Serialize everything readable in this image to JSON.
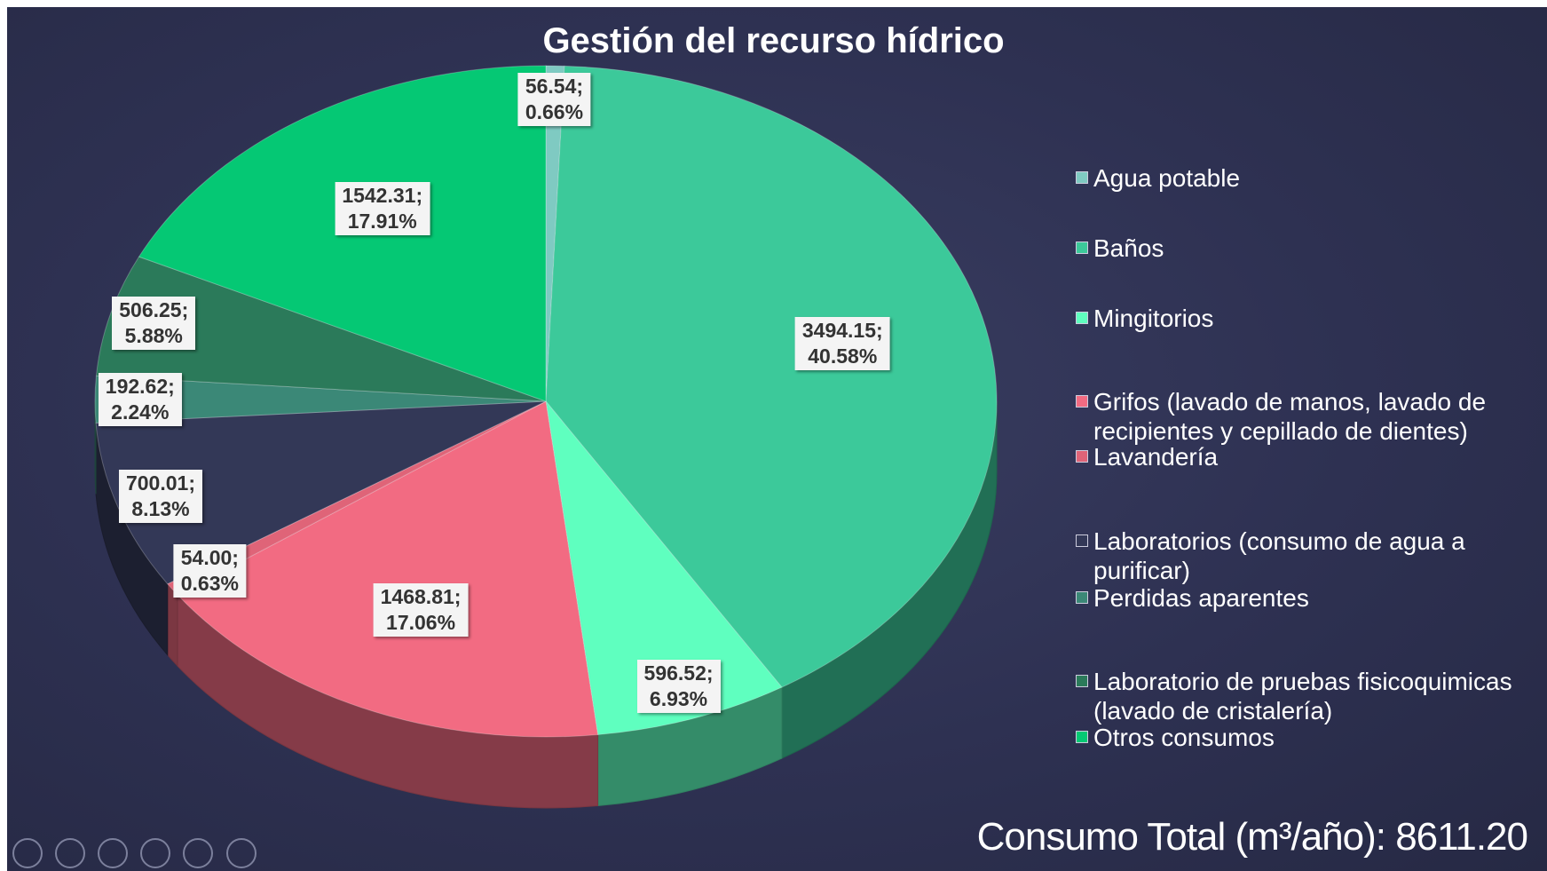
{
  "chart_data": {
    "type": "pie3d",
    "title": "Gestión del recurso hídrico",
    "categories": [
      "Agua potable",
      "Baños",
      "Mingitorios",
      "Grifos (lavado de manos, lavado de recipientes y cepillado de dientes)",
      "Lavandería",
      "Laboratorios (consumo de agua a purificar)",
      "Perdidas aparentes",
      "Laboratorio de pruebas fisicoquimicas (lavado de cristalería)",
      "Otros consumos"
    ],
    "values": [
      56.54,
      3494.15,
      596.52,
      1468.81,
      54.0,
      700.01,
      192.62,
      506.25,
      1542.31
    ],
    "value_labels": [
      "56.54;\n0.66%",
      "3494.15;\n40.58%",
      "596.52;\n6.93%",
      "1468.81;\n17.06%",
      "54.00;\n0.63%",
      "700.01;\n8.13%",
      "192.62;\n2.24%",
      "506.25;\n5.88%",
      "1542.31;\n17.91%"
    ],
    "colors": [
      "#7fcac2",
      "#3cc99a",
      "#5fffbf",
      "#f26b82",
      "#df6478",
      "#333857",
      "#3b8877",
      "#2b7a5a",
      "#05c874"
    ],
    "legend": "right",
    "total_label": "Consumo Total (m³/año): 8611.20"
  }
}
